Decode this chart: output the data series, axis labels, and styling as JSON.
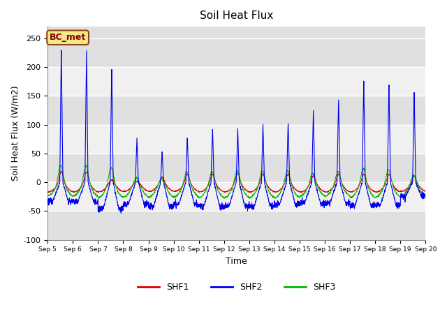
{
  "title": "Soil Heat Flux",
  "xlabel": "Time",
  "ylabel": "Soil Heat Flux (W/m2)",
  "ylim": [
    -100,
    270
  ],
  "yticks": [
    -100,
    -50,
    0,
    50,
    100,
    150,
    200,
    250
  ],
  "legend_labels": [
    "SHF1",
    "SHF2",
    "SHF3"
  ],
  "legend_colors": [
    "#dd0000",
    "#0000ee",
    "#00bb00"
  ],
  "annotation_text": "BC_met",
  "annotation_color": "#8B0000",
  "annotation_bg": "#f5e88a",
  "background_color": "#e0e0e0",
  "band_color": "#f0f0f0",
  "n_days": 15,
  "start_day": 5,
  "shf2_day_peaks": [
    235,
    235,
    203,
    80,
    55,
    80,
    95,
    95,
    103,
    105,
    130,
    147,
    178,
    175,
    160
  ],
  "shf2_night_troughs": [
    -42,
    -42,
    -58,
    -48,
    -53,
    -48,
    -52,
    -52,
    -52,
    -48,
    -45,
    -45,
    -50,
    -50,
    -30
  ],
  "shf1_day_peaks": [
    18,
    17,
    3,
    0,
    8,
    13,
    13,
    15,
    13,
    13,
    10,
    13,
    13,
    13,
    10
  ],
  "shf1_night_base": [
    -18,
    -18,
    -18,
    -17,
    -17,
    -17,
    -18,
    -18,
    -18,
    -18,
    -18,
    -18,
    -18,
    -18,
    -17
  ],
  "shf3_day_peaks": [
    30,
    28,
    25,
    7,
    6,
    18,
    18,
    20,
    20,
    20,
    15,
    18,
    23,
    22,
    12
  ],
  "shf3_night_base": [
    -25,
    -25,
    -28,
    -27,
    -27,
    -27,
    -28,
    -28,
    -28,
    -28,
    -25,
    -25,
    -28,
    -27,
    -25
  ]
}
